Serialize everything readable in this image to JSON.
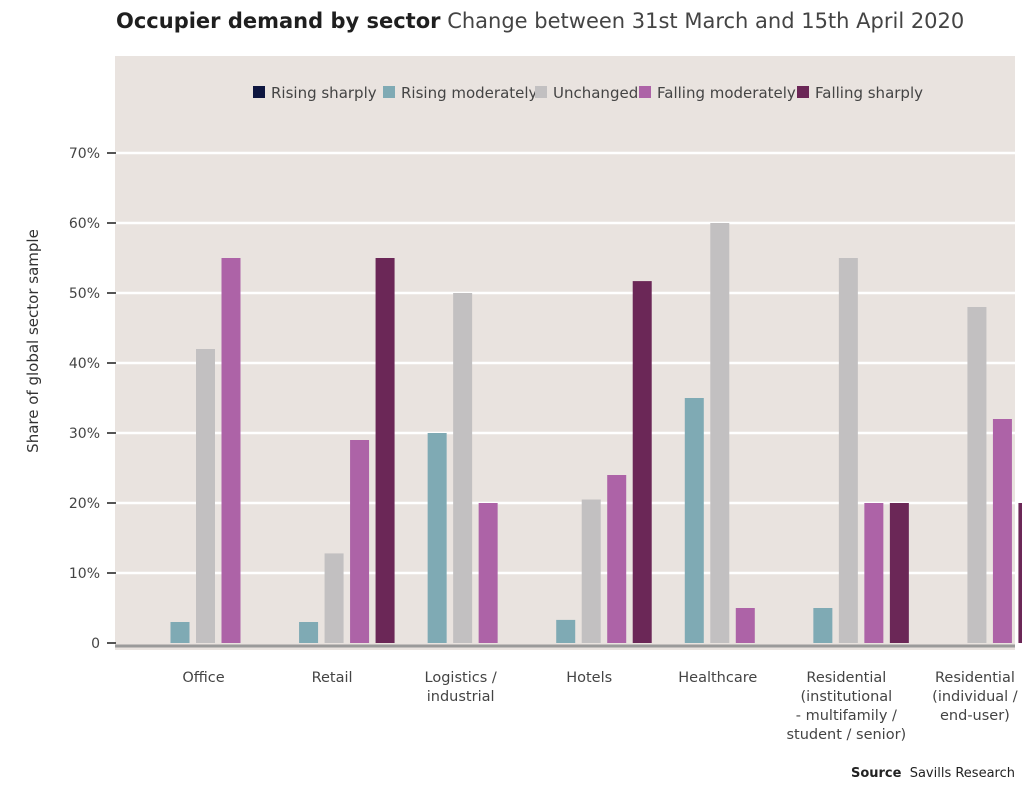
{
  "chart_data": {
    "type": "bar",
    "title": "Occupier demand by sector",
    "subtitle": "Change between 31st March and 15th April 2020",
    "ylabel": "Share of global sector sample",
    "xlabel": "",
    "ylim": [
      0,
      0.7
    ],
    "yticks": [
      0,
      0.1,
      0.2,
      0.3,
      0.4,
      0.5,
      0.6,
      0.7
    ],
    "ytick_labels": [
      "0",
      "10%",
      "20%",
      "30%",
      "40%",
      "50%",
      "60%",
      "70%"
    ],
    "grid": true,
    "legend_position": "top-right",
    "categories": [
      [
        "Office"
      ],
      [
        "Retail"
      ],
      [
        "Logistics /",
        "industrial"
      ],
      [
        "Hotels"
      ],
      [
        "Healthcare"
      ],
      [
        "Residential",
        "(institutional",
        "- multifamily /",
        "student / senior)"
      ],
      [
        "Residential",
        "(individual /",
        "end-user)"
      ]
    ],
    "series": [
      {
        "name": "Rising sharply",
        "color": "#0e1640",
        "values": [
          0,
          0,
          0,
          0,
          0,
          0,
          0
        ]
      },
      {
        "name": "Rising moderately",
        "color": "#7faab4",
        "values": [
          0.03,
          0.03,
          0.3,
          0.033,
          0.35,
          0.05,
          0
        ]
      },
      {
        "name": "Unchanged",
        "color": "#c2c0c1",
        "values": [
          0.42,
          0.128,
          0.5,
          0.205,
          0.6,
          0.55,
          0.48
        ]
      },
      {
        "name": "Falling moderately",
        "color": "#ad63a7",
        "values": [
          0.55,
          0.29,
          0.2,
          0.24,
          0.05,
          0.2,
          0.32
        ]
      },
      {
        "name": "Falling sharply",
        "color": "#6b2757",
        "values": [
          0,
          0.55,
          0,
          0.517,
          0,
          0.2,
          0.2
        ]
      }
    ]
  },
  "source": {
    "label": "Source",
    "text": "Savills Research"
  }
}
